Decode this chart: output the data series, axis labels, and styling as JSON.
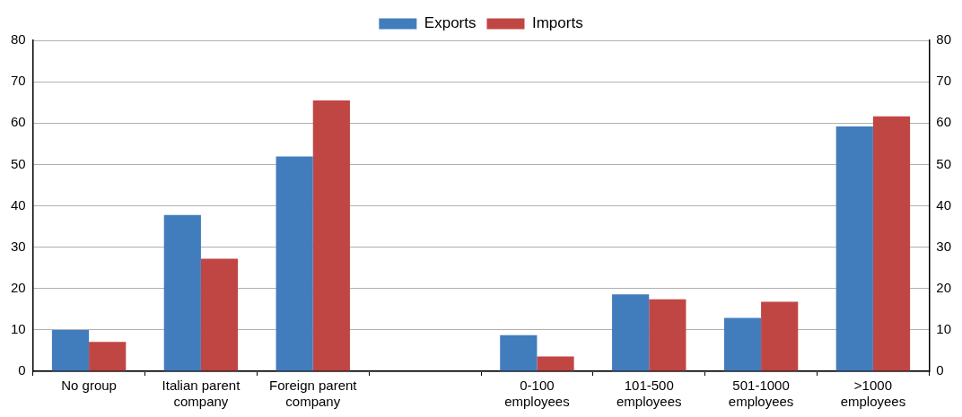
{
  "chart_data": {
    "type": "bar",
    "categories": [
      "No group",
      "Italian parent company",
      "Foreign parent company",
      null,
      "0-100 employees",
      "101-500 employees",
      "501-1000 employees",
      ">1000 employees"
    ],
    "series": [
      {
        "name": "Exports",
        "color": "#417dbd",
        "values": [
          10,
          37.8,
          51.9,
          null,
          8.7,
          18.6,
          12.9,
          59.2
        ]
      },
      {
        "name": "Imports",
        "color": "#c04644",
        "values": [
          7.1,
          27.2,
          65.5,
          null,
          3.6,
          17.4,
          16.8,
          61.6
        ]
      }
    ],
    "ylim": [
      0,
      80
    ],
    "yticks": [
      0,
      10,
      20,
      30,
      40,
      50,
      60,
      70,
      80
    ],
    "y2lim": [
      0,
      80
    ],
    "y2ticks": [
      0,
      10,
      20,
      30,
      40,
      50,
      60,
      70,
      80
    ],
    "grid": "y",
    "legend": "top"
  }
}
